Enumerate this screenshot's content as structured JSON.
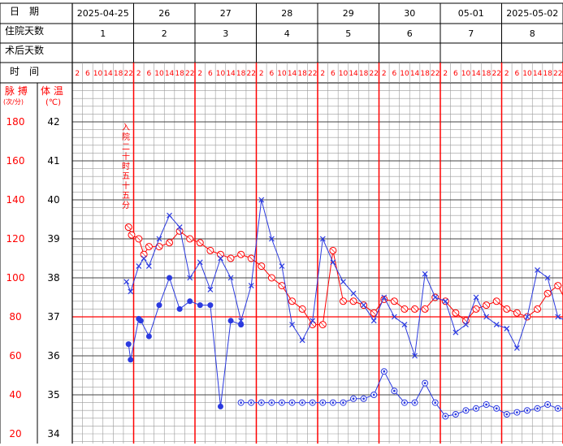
{
  "header": {
    "date_label": "日　期",
    "stay_label": "住院天数",
    "postop_label": "术后天数",
    "time_label": "时　间",
    "dates": [
      "2025-04-25",
      "26",
      "27",
      "28",
      "29",
      "30",
      "05-01",
      "2025-05-02"
    ],
    "stay_days": [
      "1",
      "2",
      "3",
      "4",
      "5",
      "6",
      "7",
      "8"
    ],
    "times": [
      "2",
      "6",
      "10",
      "14",
      "18",
      "22"
    ]
  },
  "axis_titles": {
    "pulse": "脉 搏",
    "pulse_unit": "(次/分)",
    "temp": "体 温",
    "temp_unit": "(℃)"
  },
  "annotation": "入院二十时五十五分",
  "colors": {
    "red": "#ff0000",
    "blue": "#2b3ae0",
    "grid": "#9a9a9a",
    "text": "#000000"
  },
  "chart_data": {
    "type": "line",
    "x_unit": "4-hour time slot (0 = 2025-04-25 02:00)",
    "y_left": {
      "label": "脉搏",
      "ticks": [
        20,
        40,
        60,
        80,
        100,
        120,
        140,
        160,
        180
      ]
    },
    "y_right": {
      "label": "体温",
      "ticks": [
        34,
        35,
        36,
        37,
        38,
        39,
        40,
        41,
        42
      ],
      "range": [
        34,
        42
      ]
    },
    "reference_line": {
      "value": 37,
      "color": "#ff0000"
    },
    "series": [
      {
        "marker": "circle-open",
        "color": "#ff0000",
        "unit": "℃",
        "points": [
          [
            5,
            39.3
          ],
          [
            5.3,
            39.1
          ],
          [
            6,
            39.0
          ],
          [
            6.5,
            38.6
          ],
          [
            7,
            38.8
          ],
          [
            8,
            38.8
          ],
          [
            9,
            38.9
          ],
          [
            10,
            39.2
          ],
          [
            11,
            39.0
          ],
          [
            12,
            38.9
          ],
          [
            13,
            38.7
          ],
          [
            14,
            38.6
          ],
          [
            15,
            38.5
          ],
          [
            16,
            38.6
          ],
          [
            17,
            38.5
          ],
          [
            18,
            38.3
          ],
          [
            19,
            38.0
          ],
          [
            20,
            37.8
          ],
          [
            21,
            37.4
          ],
          [
            22,
            37.2
          ],
          [
            23,
            36.8
          ],
          [
            24,
            36.8
          ],
          [
            25,
            38.7
          ],
          [
            26,
            37.4
          ],
          [
            27,
            37.4
          ],
          [
            28,
            37.3
          ],
          [
            29,
            37.1
          ],
          [
            30,
            37.45
          ],
          [
            31,
            37.4
          ],
          [
            32,
            37.2
          ],
          [
            33,
            37.2
          ],
          [
            34,
            37.2
          ],
          [
            35,
            37.5
          ],
          [
            36,
            37.4
          ],
          [
            37,
            37.1
          ],
          [
            38,
            36.9
          ],
          [
            39,
            37.2
          ],
          [
            40,
            37.3
          ],
          [
            41,
            37.4
          ],
          [
            42,
            37.2
          ],
          [
            43,
            37.1
          ],
          [
            44,
            37.0
          ],
          [
            45,
            37.2
          ],
          [
            46,
            37.6
          ],
          [
            47,
            37.8
          ],
          [
            48,
            37.3
          ],
          [
            48.5,
            37.2
          ]
        ]
      },
      {
        "marker": "x",
        "color": "#2b3ae0",
        "unit": "℃",
        "points": [
          [
            4.8,
            37.9
          ],
          [
            5.2,
            37.65
          ],
          [
            6,
            38.3
          ],
          [
            6.5,
            38.5
          ],
          [
            7,
            38.3
          ],
          [
            8,
            39.0
          ],
          [
            9,
            39.6
          ],
          [
            10,
            39.3
          ],
          [
            11,
            38.0
          ],
          [
            12,
            38.4
          ],
          [
            13,
            37.7
          ],
          [
            14,
            38.5
          ],
          [
            15,
            38.0
          ],
          [
            16,
            36.9
          ],
          [
            17,
            37.8
          ],
          [
            18,
            40.0
          ],
          [
            19,
            39.0
          ],
          [
            20,
            38.3
          ],
          [
            21,
            36.8
          ],
          [
            22,
            36.4
          ],
          [
            23,
            36.9
          ],
          [
            24,
            39.0
          ],
          [
            25,
            38.4
          ],
          [
            26,
            37.9
          ],
          [
            27,
            37.6
          ],
          [
            28,
            37.3
          ],
          [
            29,
            36.9
          ],
          [
            30,
            37.5
          ],
          [
            31,
            37.0
          ],
          [
            32,
            36.8
          ],
          [
            33,
            36.0
          ],
          [
            34,
            38.1
          ],
          [
            35,
            37.5
          ],
          [
            36,
            37.4
          ],
          [
            37,
            36.6
          ],
          [
            38,
            36.8
          ],
          [
            39,
            37.5
          ],
          [
            40,
            37.0
          ],
          [
            41,
            36.8
          ],
          [
            42,
            36.7
          ],
          [
            43,
            36.2
          ],
          [
            44,
            37.0
          ],
          [
            45,
            38.2
          ],
          [
            46,
            38.0
          ],
          [
            47,
            37.0
          ],
          [
            48.5,
            36.8
          ]
        ]
      },
      {
        "marker": "dot",
        "color": "#2b3ae0",
        "unit": "次/分",
        "points": [
          [
            5,
            66
          ],
          [
            5.2,
            58
          ],
          [
            6,
            79
          ],
          [
            6.2,
            78
          ],
          [
            7,
            70
          ],
          [
            8,
            86
          ],
          [
            9,
            100
          ],
          [
            10,
            84
          ],
          [
            11,
            88
          ],
          [
            12,
            86
          ],
          [
            13,
            86
          ],
          [
            14,
            34
          ],
          [
            15,
            78
          ],
          [
            16,
            76
          ]
        ]
      },
      {
        "marker": "circle-o",
        "color": "#2b3ae0",
        "unit": "次/分",
        "points": [
          [
            16,
            36
          ],
          [
            17,
            36
          ],
          [
            18,
            36
          ],
          [
            19,
            36
          ],
          [
            20,
            36
          ],
          [
            21,
            36
          ],
          [
            22,
            36
          ],
          [
            23,
            36
          ],
          [
            24,
            36
          ],
          [
            25,
            36
          ],
          [
            26,
            36
          ],
          [
            27,
            38
          ],
          [
            28,
            38
          ],
          [
            29,
            40
          ],
          [
            30,
            52
          ],
          [
            31,
            42
          ],
          [
            32,
            36
          ],
          [
            33,
            36
          ],
          [
            34,
            46
          ],
          [
            35,
            36
          ],
          [
            36,
            29
          ],
          [
            37,
            30
          ],
          [
            38,
            32
          ],
          [
            39,
            33
          ],
          [
            40,
            35
          ],
          [
            41,
            33
          ],
          [
            42,
            30
          ],
          [
            43,
            31
          ],
          [
            44,
            32
          ],
          [
            45,
            33
          ],
          [
            46,
            35
          ],
          [
            47,
            33
          ],
          [
            48,
            33
          ],
          [
            48.5,
            32
          ]
        ]
      }
    ]
  }
}
